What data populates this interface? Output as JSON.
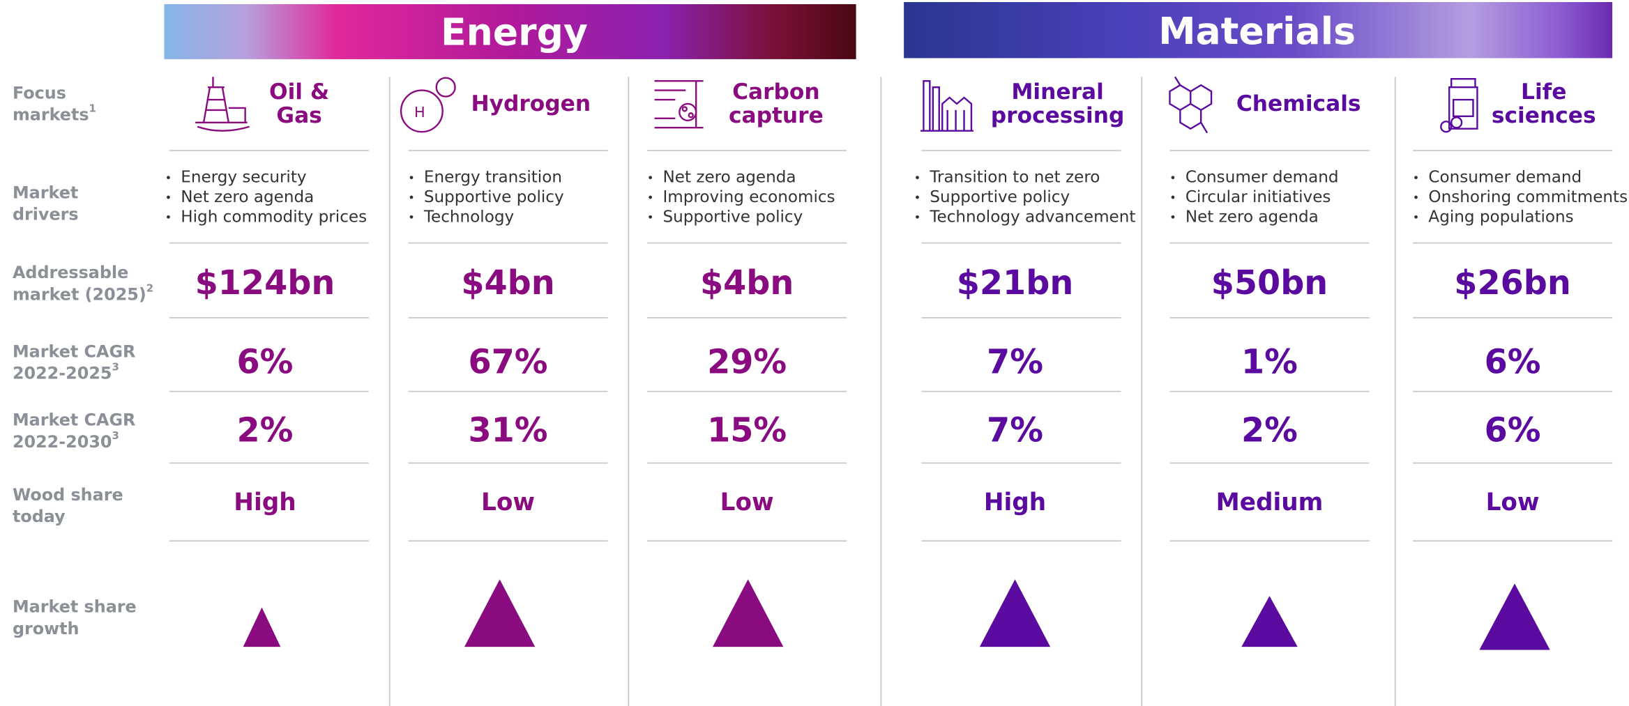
{
  "groups": [
    {
      "title": "Energy"
    },
    {
      "title": "Materials"
    }
  ],
  "row_labels": [
    {
      "lines": [
        "Focus",
        "markets"
      ],
      "note": "1"
    },
    {
      "lines": [
        "Market",
        "drivers"
      ]
    },
    {
      "lines": [
        "Addressable",
        "market (2025)"
      ],
      "note": "2"
    },
    {
      "lines": [
        "Market CAGR",
        "2022-2025"
      ],
      "note": "3"
    },
    {
      "lines": [
        "Market CAGR",
        "2022-2030"
      ],
      "note": "3"
    },
    {
      "lines": [
        "Wood share",
        "today"
      ]
    },
    {
      "lines": [
        "Market share",
        "growth"
      ]
    }
  ],
  "markets": [
    {
      "name": [
        "Oil &",
        "Gas"
      ],
      "drivers": [
        "Energy security",
        "Net zero agenda",
        "High commodity prices"
      ],
      "addressable": "$124bn",
      "cagr_2025": "6%",
      "cagr_2030": "2%",
      "share_today": "High"
    },
    {
      "name": [
        "Hydrogen"
      ],
      "drivers": [
        "Energy transition",
        "Supportive policy",
        "Technology"
      ],
      "addressable": "$4bn",
      "cagr_2025": "67%",
      "cagr_2030": "31%",
      "share_today": "Low"
    },
    {
      "name": [
        "Carbon",
        "capture"
      ],
      "drivers": [
        "Net zero agenda",
        "Improving economics",
        "Supportive policy"
      ],
      "addressable": "$4bn",
      "cagr_2025": "29%",
      "cagr_2030": "15%",
      "share_today": "Low"
    },
    {
      "name": [
        "Mineral",
        "processing"
      ],
      "drivers": [
        "Transition to net zero",
        "Supportive policy",
        "Technology advancement"
      ],
      "addressable": "$21bn",
      "cagr_2025": "7%",
      "cagr_2030": "7%",
      "share_today": "High"
    },
    {
      "name": [
        "Chemicals"
      ],
      "drivers": [
        "Consumer demand",
        "Circular initiatives",
        "Net zero agenda"
      ],
      "addressable": "$50bn",
      "cagr_2025": "1%",
      "cagr_2030": "2%",
      "share_today": "Medium"
    },
    {
      "name": [
        "Life",
        "sciences"
      ],
      "drivers": [
        "Consumer demand",
        "Onshoring commitments",
        "Aging populations"
      ],
      "addressable": "$26bn",
      "cagr_2025": "6%",
      "cagr_2030": "6%",
      "share_today": "Low"
    }
  ]
}
